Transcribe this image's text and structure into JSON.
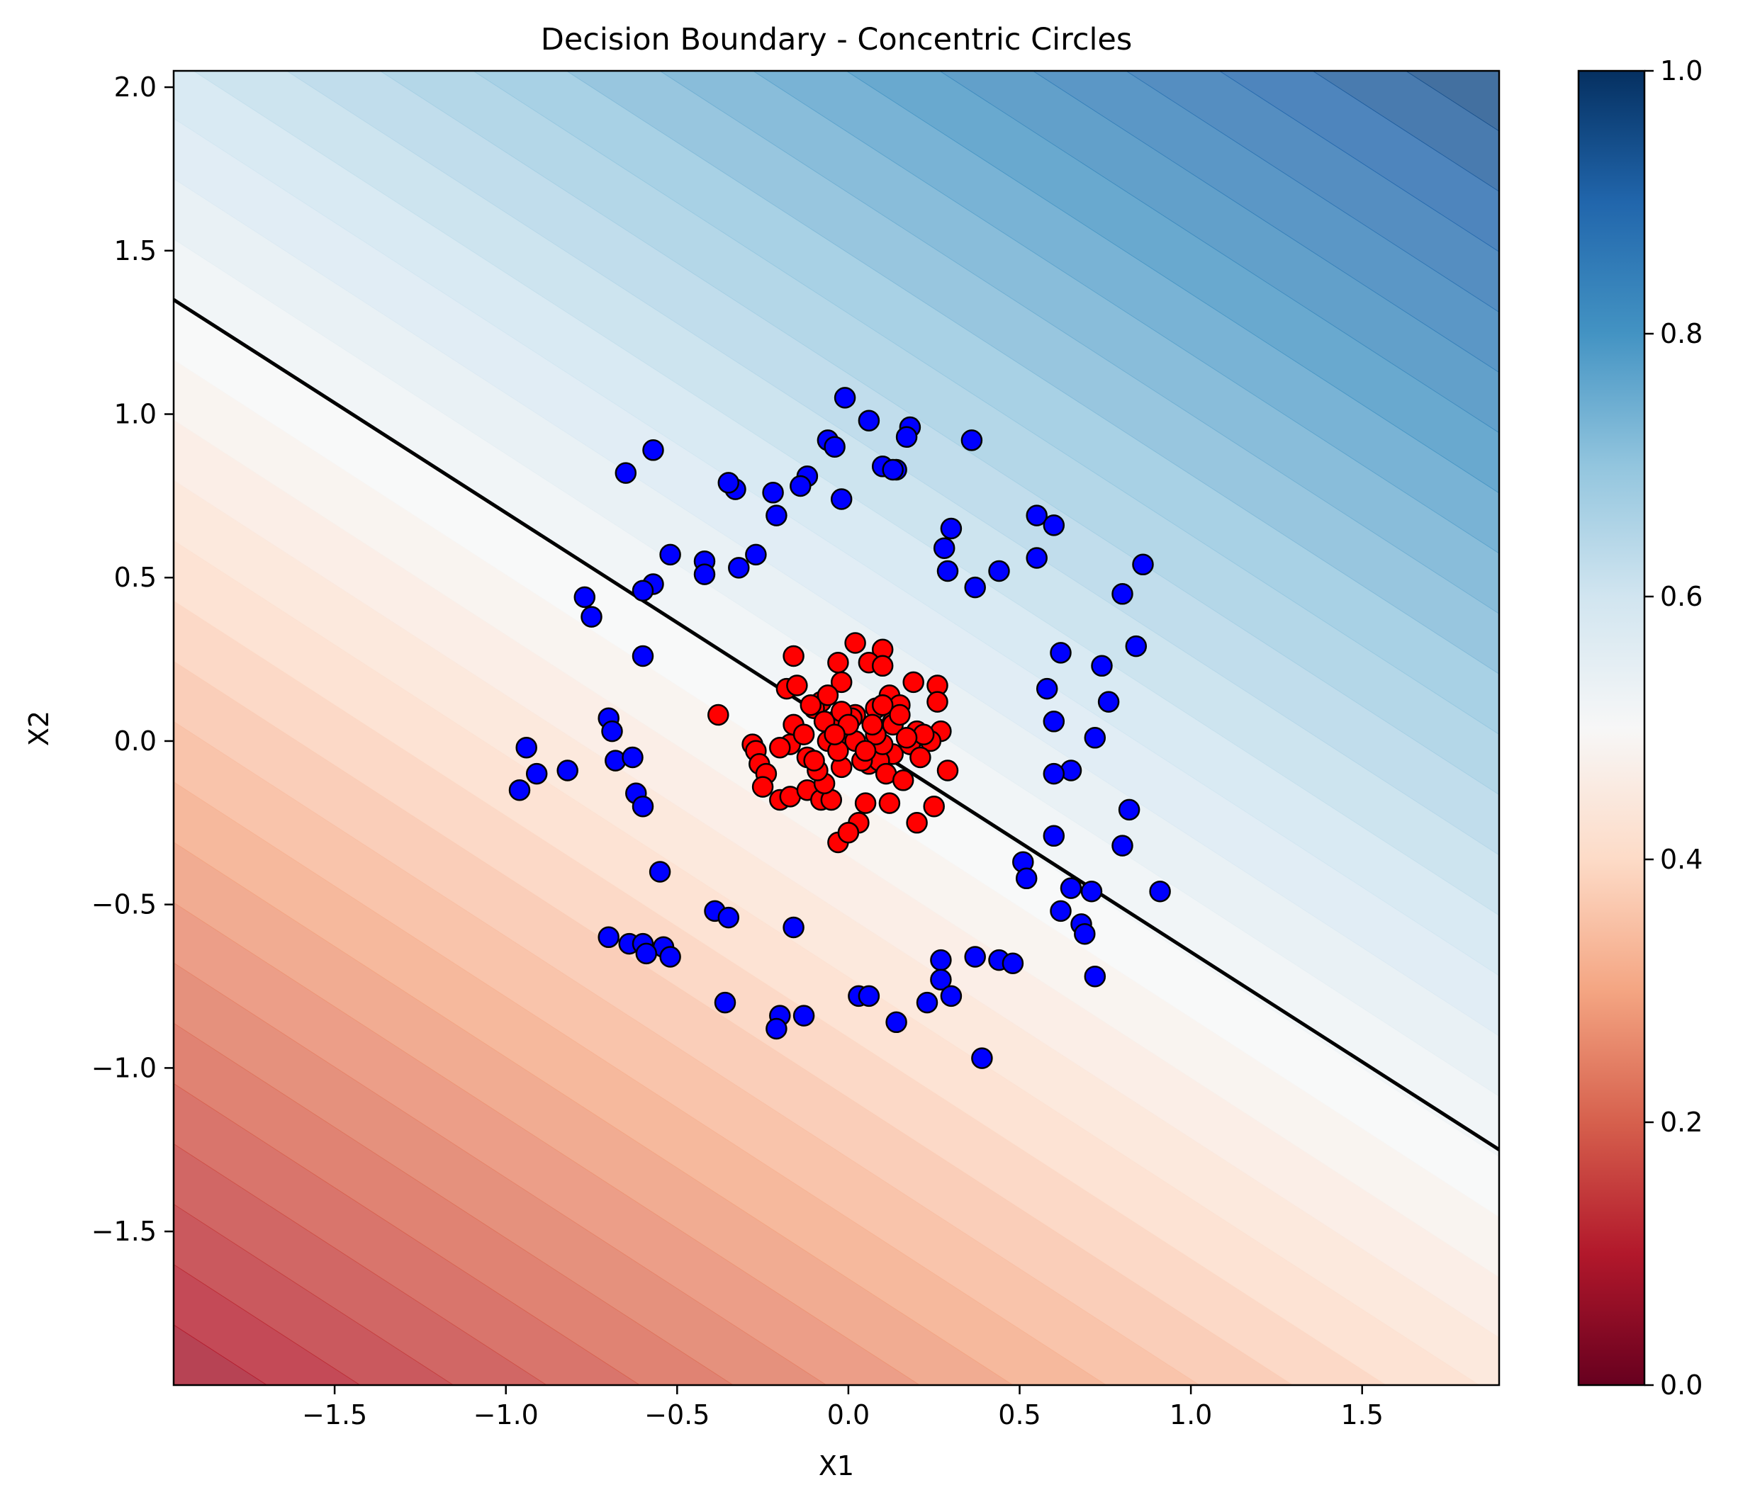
{
  "chart_data": {
    "type": "scatter",
    "title": "Decision Boundary - Concentric Circles",
    "xlabel": "X1",
    "ylabel": "X2",
    "xlim": [
      -1.97,
      1.9
    ],
    "ylim": [
      -1.97,
      2.05
    ],
    "x_ticks": [
      -1.5,
      -1.0,
      -0.5,
      0.0,
      0.5,
      1.0,
      1.5
    ],
    "x_tick_labels": [
      "−1.5",
      "−1.0",
      "−0.5",
      "0.0",
      "0.5",
      "1.0",
      "1.5"
    ],
    "y_ticks": [
      -1.5,
      -1.0,
      -0.5,
      0.0,
      0.5,
      1.0,
      1.5,
      2.0
    ],
    "y_tick_labels": [
      "−1.5",
      "−1.0",
      "−0.5",
      "0.0",
      "0.5",
      "1.0",
      "1.5",
      "2.0"
    ],
    "grid": false,
    "background": {
      "type": "filled_contour",
      "colormap": "RdBu",
      "alpha": 0.8,
      "function": "logistic probability",
      "gradient_direction": [
        0.288,
        0.425
      ],
      "value_at_x0_y0": 0.5,
      "value_bottom_left": 0.07,
      "value_top_right": 0.96
    },
    "decision_boundary": {
      "label": "p = 0.5",
      "color": "#000000",
      "points": [
        [
          -1.97,
          1.35
        ],
        [
          1.9,
          -1.25
        ]
      ]
    },
    "colorbar": {
      "range": [
        0.0,
        1.0
      ],
      "ticks": [
        0.0,
        0.2,
        0.4,
        0.6,
        0.8,
        1.0
      ],
      "tick_labels": [
        "0.0",
        "0.2",
        "0.4",
        "0.6",
        "0.8",
        "1.0"
      ]
    },
    "series": [
      {
        "class": 0,
        "color": "#0000ff",
        "x": [
          -0.01,
          0.06,
          -0.06,
          0.18,
          0.17,
          0.36,
          -0.04,
          -0.57,
          -0.65,
          0.1,
          0.14,
          0.13,
          -0.12,
          -0.14,
          -0.33,
          -0.35,
          -0.22,
          -0.02,
          -0.21,
          0.55,
          0.6,
          0.3,
          -0.52,
          -0.42,
          -0.27,
          -0.32,
          -0.42,
          -0.57,
          -0.6,
          0.28,
          0.29,
          0.44,
          0.37,
          0.55,
          0.8,
          0.86,
          -0.77,
          -0.75,
          -0.6,
          0.62,
          0.74,
          0.84,
          0.58,
          0.76,
          -0.7,
          -0.69,
          0.6,
          0.72,
          -0.94,
          -0.91,
          -0.82,
          -0.68,
          -0.63,
          -0.96,
          -0.62,
          -0.6,
          0.65,
          0.6,
          0.82,
          0.6,
          0.8,
          0.51,
          0.52,
          0.65,
          0.71,
          0.62,
          0.68,
          0.69,
          0.91,
          0.72,
          -0.55,
          -0.39,
          -0.35,
          -0.16,
          -0.7,
          -0.64,
          -0.6,
          -0.54,
          -0.52,
          -0.59,
          0.27,
          0.37,
          0.44,
          0.48,
          0.27,
          0.03,
          0.06,
          0.3,
          0.23,
          -0.36,
          -0.2,
          -0.13,
          -0.21,
          0.14,
          0.39
        ],
        "y": [
          1.05,
          0.98,
          0.92,
          0.96,
          0.93,
          0.92,
          0.9,
          0.89,
          0.82,
          0.84,
          0.83,
          0.83,
          0.81,
          0.78,
          0.77,
          0.79,
          0.76,
          0.74,
          0.69,
          0.69,
          0.66,
          0.65,
          0.57,
          0.55,
          0.57,
          0.53,
          0.51,
          0.48,
          0.46,
          0.59,
          0.52,
          0.52,
          0.47,
          0.56,
          0.45,
          0.54,
          0.44,
          0.38,
          0.26,
          0.27,
          0.23,
          0.29,
          0.16,
          0.12,
          0.07,
          0.03,
          0.06,
          0.01,
          -0.02,
          -0.1,
          -0.09,
          -0.06,
          -0.05,
          -0.15,
          -0.16,
          -0.2,
          -0.09,
          -0.1,
          -0.21,
          -0.29,
          -0.32,
          -0.37,
          -0.42,
          -0.45,
          -0.46,
          -0.52,
          -0.56,
          -0.59,
          -0.46,
          -0.72,
          -0.4,
          -0.52,
          -0.54,
          -0.57,
          -0.6,
          -0.62,
          -0.62,
          -0.63,
          -0.66,
          -0.65,
          -0.67,
          -0.66,
          -0.67,
          -0.68,
          -0.73,
          -0.78,
          -0.78,
          -0.78,
          -0.8,
          -0.8,
          -0.84,
          -0.84,
          -0.88,
          -0.86,
          -0.97
        ]
      },
      {
        "class": 1,
        "color": "#ff0000",
        "x": [
          0.02,
          -0.16,
          0.1,
          0.06,
          -0.03,
          -0.08,
          -0.1,
          -0.18,
          -0.15,
          -0.02,
          0.1,
          0.19,
          0.26,
          0.12,
          0.02,
          -0.06,
          -0.11,
          0.08,
          0.15,
          0.26,
          -0.38,
          -0.16,
          -0.04,
          0.01,
          0.08,
          0.27,
          0.2,
          0.24,
          0.13,
          -0.28,
          -0.27,
          -0.17,
          -0.2,
          -0.12,
          -0.06,
          0.0,
          0.05,
          0.13,
          0.18,
          0.22,
          0.29,
          -0.26,
          -0.24,
          -0.25,
          -0.2,
          -0.17,
          -0.12,
          -0.08,
          -0.05,
          -0.02,
          0.06,
          0.09,
          0.11,
          0.16,
          0.21,
          -0.07,
          -0.09,
          0.05,
          0.12,
          0.25,
          0.2,
          0.03,
          -0.03,
          0.0,
          0.1,
          -0.13,
          -0.07,
          -0.02,
          0.02,
          0.08,
          -0.03,
          0.04,
          0.13,
          -0.1,
          0.0,
          0.05,
          0.15,
          -0.04,
          0.07,
          0.1,
          0.17
        ],
        "y": [
          0.3,
          0.26,
          0.28,
          0.24,
          0.24,
          0.12,
          0.1,
          0.16,
          0.17,
          0.18,
          0.23,
          0.18,
          0.17,
          0.14,
          0.08,
          0.14,
          0.11,
          0.1,
          0.11,
          0.12,
          0.08,
          0.05,
          0.06,
          0.07,
          0.04,
          0.03,
          0.03,
          0.0,
          0.06,
          -0.01,
          -0.03,
          -0.01,
          -0.02,
          -0.05,
          0.0,
          0.01,
          -0.05,
          -0.04,
          -0.01,
          0.02,
          -0.09,
          -0.07,
          -0.1,
          -0.14,
          -0.18,
          -0.17,
          -0.15,
          -0.18,
          -0.18,
          -0.08,
          -0.07,
          -0.06,
          -0.1,
          -0.12,
          -0.05,
          -0.13,
          -0.09,
          -0.19,
          -0.19,
          -0.2,
          -0.25,
          -0.25,
          -0.31,
          -0.28,
          -0.01,
          0.02,
          0.06,
          0.09,
          0.0,
          0.02,
          -0.03,
          -0.06,
          0.05,
          -0.06,
          0.05,
          -0.03,
          0.08,
          0.02,
          0.05,
          0.11,
          0.01
        ]
      }
    ]
  }
}
